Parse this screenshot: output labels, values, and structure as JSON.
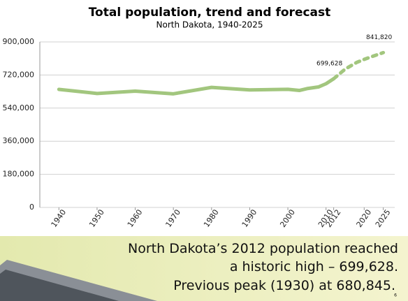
{
  "chart_data": {
    "type": "line",
    "title": "Total population, trend and forecast",
    "subtitle": "North Dakota, 1940-2025",
    "x": [
      1940,
      1950,
      1960,
      1970,
      1980,
      1990,
      2000,
      2003,
      2005,
      2008,
      2010,
      2012,
      2015,
      2018,
      2020,
      2022,
      2025
    ],
    "series": [
      {
        "color": "#a2c67e",
        "dashed": false,
        "values": [
          641935,
          619636,
          632446,
          617761,
          652717,
          638800,
          642200,
          636000,
          646000,
          655000,
          672591,
          699628,
          null,
          null,
          null,
          null,
          null
        ],
        "value_labels": [
          null,
          null,
          null,
          null,
          null,
          null,
          null,
          null,
          null,
          null,
          null,
          "699,628",
          null,
          null,
          null,
          null,
          null
        ]
      },
      {
        "color": "#a2c67e",
        "dashed": true,
        "values": [
          null,
          null,
          null,
          null,
          null,
          null,
          null,
          null,
          null,
          null,
          null,
          699628,
          752000,
          788000,
          805000,
          820000,
          841820
        ],
        "value_labels": [
          null,
          null,
          null,
          null,
          null,
          null,
          null,
          null,
          null,
          null,
          null,
          null,
          null,
          null,
          null,
          null,
          "841,820"
        ]
      }
    ],
    "xlim": [
      1935,
      2028
    ],
    "xticks": [
      1940,
      1950,
      1960,
      1970,
      1980,
      1990,
      2000,
      2010,
      2012,
      2020,
      2025
    ],
    "ylim": [
      0,
      900000
    ],
    "yticks": [
      0,
      {
        "value": 180000,
        "label": "180,000"
      },
      {
        "value": 360000,
        "label": "360,000"
      },
      {
        "value": 540000,
        "label": "540,000"
      },
      {
        "value": 720000,
        "label": "720,000"
      },
      {
        "value": 900000,
        "label": "900,000"
      }
    ],
    "grid": true
  },
  "slide": {
    "text_lines": [
      "North Dakota’s 2012 population reached",
      "a historic high – 699,628.",
      "Previous peak (1930) at 680,845."
    ],
    "page_number": "6"
  }
}
